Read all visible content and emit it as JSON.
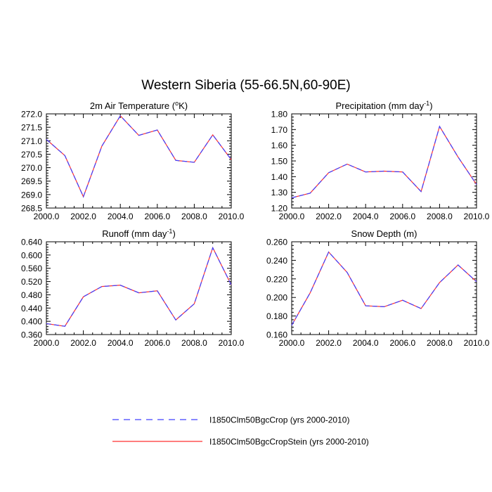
{
  "figure": {
    "title": "Western Siberia (55-66.5N,60-90E)"
  },
  "legend": {
    "placement": "bottom-center",
    "entries": [
      {
        "label": "I1850Clm50BgcCrop (yrs 2000-2010)",
        "color": "#4040ff",
        "style": "dashed"
      },
      {
        "label": "I1850Clm50BgcCropStein (yrs 2000-2010)",
        "color": "#ff3030",
        "style": "solid"
      }
    ]
  },
  "chart_data": [
    {
      "type": "line",
      "title": "2m Air Temperature (",
      "title_sup": "o",
      "title_after": "K)",
      "xlabel": "",
      "ylabel": "",
      "x": [
        2000,
        2001,
        2002,
        2003,
        2004,
        2005,
        2006,
        2007,
        2008,
        2009,
        2010
      ],
      "xlim": [
        2000,
        2010
      ],
      "ylim": [
        268.5,
        272.0
      ],
      "xticks": [
        2000,
        2002,
        2004,
        2006,
        2008,
        2010
      ],
      "xticklabels": [
        "2000.0",
        "2002.0",
        "2004.0",
        "2006.0",
        "2008.0",
        "2010.0"
      ],
      "yticks": [
        268.5,
        269.0,
        269.5,
        270.0,
        270.5,
        271.0,
        271.5,
        272.0
      ],
      "yticklabels": [
        "268.5",
        "269.0",
        "269.5",
        "270.0",
        "270.5",
        "271.0",
        "271.5",
        "272.0"
      ],
      "series": [
        {
          "name": "I1850Clm50BgcCrop (yrs 2000-2010)",
          "values": [
            271.05,
            270.45,
            268.92,
            270.8,
            271.93,
            271.2,
            271.4,
            270.27,
            270.2,
            271.22,
            270.3
          ]
        },
        {
          "name": "I1850Clm50BgcCropStein (yrs 2000-2010)",
          "values": [
            271.05,
            270.45,
            268.92,
            270.8,
            271.93,
            271.2,
            271.4,
            270.27,
            270.2,
            271.22,
            270.3
          ]
        }
      ]
    },
    {
      "type": "line",
      "title": "Precipitation (mm day",
      "title_sup": "-1",
      "title_after": ")",
      "xlabel": "",
      "ylabel": "",
      "x": [
        2000,
        2001,
        2002,
        2003,
        2004,
        2005,
        2006,
        2007,
        2008,
        2009,
        2010
      ],
      "xlim": [
        2000,
        2010
      ],
      "ylim": [
        1.2,
        1.8
      ],
      "xticks": [
        2000,
        2002,
        2004,
        2006,
        2008,
        2010
      ],
      "xticklabels": [
        "2000.0",
        "2002.0",
        "2004.0",
        "2006.0",
        "2008.0",
        "2010.0"
      ],
      "yticks": [
        1.2,
        1.3,
        1.4,
        1.5,
        1.6,
        1.7,
        1.8
      ],
      "yticklabels": [
        "1.20",
        "1.30",
        "1.40",
        "1.50",
        "1.60",
        "1.70",
        "1.80"
      ],
      "series": [
        {
          "name": "I1850Clm50BgcCrop (yrs 2000-2010)",
          "values": [
            1.265,
            1.295,
            1.425,
            1.48,
            1.43,
            1.435,
            1.43,
            1.305,
            1.72,
            1.525,
            1.35
          ]
        },
        {
          "name": "I1850Clm50BgcCropStein (yrs 2000-2010)",
          "values": [
            1.265,
            1.295,
            1.425,
            1.48,
            1.43,
            1.435,
            1.43,
            1.305,
            1.72,
            1.525,
            1.35
          ]
        }
      ]
    },
    {
      "type": "line",
      "title": "Runoff (mm day",
      "title_sup": "-1",
      "title_after": ")",
      "xlabel": "",
      "ylabel": "",
      "x": [
        2000,
        2001,
        2002,
        2003,
        2004,
        2005,
        2006,
        2007,
        2008,
        2009,
        2010
      ],
      "xlim": [
        2000,
        2010
      ],
      "ylim": [
        0.36,
        0.64
      ],
      "xticks": [
        2000,
        2002,
        2004,
        2006,
        2008,
        2010
      ],
      "xticklabels": [
        "2000.0",
        "2002.0",
        "2004.0",
        "2006.0",
        "2008.0",
        "2010.0"
      ],
      "yticks": [
        0.36,
        0.4,
        0.44,
        0.48,
        0.52,
        0.56,
        0.6,
        0.64
      ],
      "yticklabels": [
        "0.360",
        "0.400",
        "0.440",
        "0.480",
        "0.520",
        "0.560",
        "0.600",
        "0.640"
      ],
      "series": [
        {
          "name": "I1850Clm50BgcCrop (yrs 2000-2010)",
          "values": [
            0.393,
            0.385,
            0.474,
            0.505,
            0.509,
            0.486,
            0.492,
            0.404,
            0.453,
            0.622,
            0.51
          ]
        },
        {
          "name": "I1850Clm50BgcCropStein (yrs 2000-2010)",
          "values": [
            0.393,
            0.385,
            0.474,
            0.505,
            0.509,
            0.486,
            0.492,
            0.404,
            0.453,
            0.622,
            0.51
          ]
        }
      ]
    },
    {
      "type": "line",
      "title": "Snow Depth (m)",
      "title_sup": "",
      "title_after": "",
      "xlabel": "",
      "ylabel": "",
      "x": [
        2000,
        2001,
        2002,
        2003,
        2004,
        2005,
        2006,
        2007,
        2008,
        2009,
        2010
      ],
      "xlim": [
        2000,
        2010
      ],
      "ylim": [
        0.16,
        0.26
      ],
      "xticks": [
        2000,
        2002,
        2004,
        2006,
        2008,
        2010
      ],
      "xticklabels": [
        "2000.0",
        "2002.0",
        "2004.0",
        "2006.0",
        "2008.0",
        "2010.0"
      ],
      "yticks": [
        0.16,
        0.18,
        0.2,
        0.22,
        0.24,
        0.26
      ],
      "yticklabels": [
        "0.160",
        "0.180",
        "0.200",
        "0.220",
        "0.240",
        "0.260"
      ],
      "series": [
        {
          "name": "I1850Clm50BgcCrop (yrs 2000-2010)",
          "values": [
            0.17,
            0.205,
            0.249,
            0.227,
            0.191,
            0.19,
            0.197,
            0.188,
            0.216,
            0.235,
            0.217
          ]
        },
        {
          "name": "I1850Clm50BgcCropStein (yrs 2000-2010)",
          "values": [
            0.17,
            0.205,
            0.249,
            0.227,
            0.191,
            0.19,
            0.197,
            0.188,
            0.216,
            0.235,
            0.217
          ]
        }
      ]
    }
  ]
}
